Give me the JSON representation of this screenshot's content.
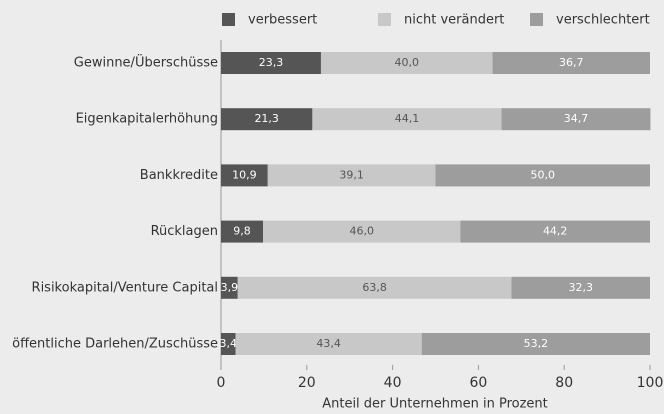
{
  "chart_data": {
    "type": "stacked-bar-horizontal",
    "x_label": "Anteil der Unternehmen in Prozent",
    "categories": [
      "Gewinne/Überschüsse",
      "Eigenkapitalerhöhung",
      "Bankkredite",
      "Rücklagen",
      "Risikokapital/Venture Capital",
      "öffentliche Darlehen/Zuschüsse"
    ],
    "series": [
      {
        "name": "verbessert",
        "color": "#555555",
        "values": [
          23.3,
          21.3,
          10.9,
          9.8,
          3.9,
          3.4
        ],
        "value_labels": [
          "23,3",
          "21,3",
          "10,9",
          "9,8",
          "3,9",
          "3,4"
        ]
      },
      {
        "name": "nicht verändert",
        "color": "#c8c8c8",
        "values": [
          40.0,
          44.1,
          39.1,
          46.0,
          63.8,
          43.4
        ],
        "value_labels": [
          "40,0",
          "44,1",
          "39,1",
          "46,0",
          "63,8",
          "43,4"
        ]
      },
      {
        "name": "verschlechtert",
        "color": "#9d9d9d",
        "values": [
          36.7,
          34.7,
          50.0,
          44.2,
          32.3,
          53.2
        ],
        "value_labels": [
          "36,7",
          "34,7",
          "50,0",
          "44,2",
          "32,3",
          "53,2"
        ]
      }
    ],
    "xlim": [
      0,
      100
    ],
    "xticks": [
      0,
      20,
      40,
      60,
      80,
      100
    ]
  }
}
